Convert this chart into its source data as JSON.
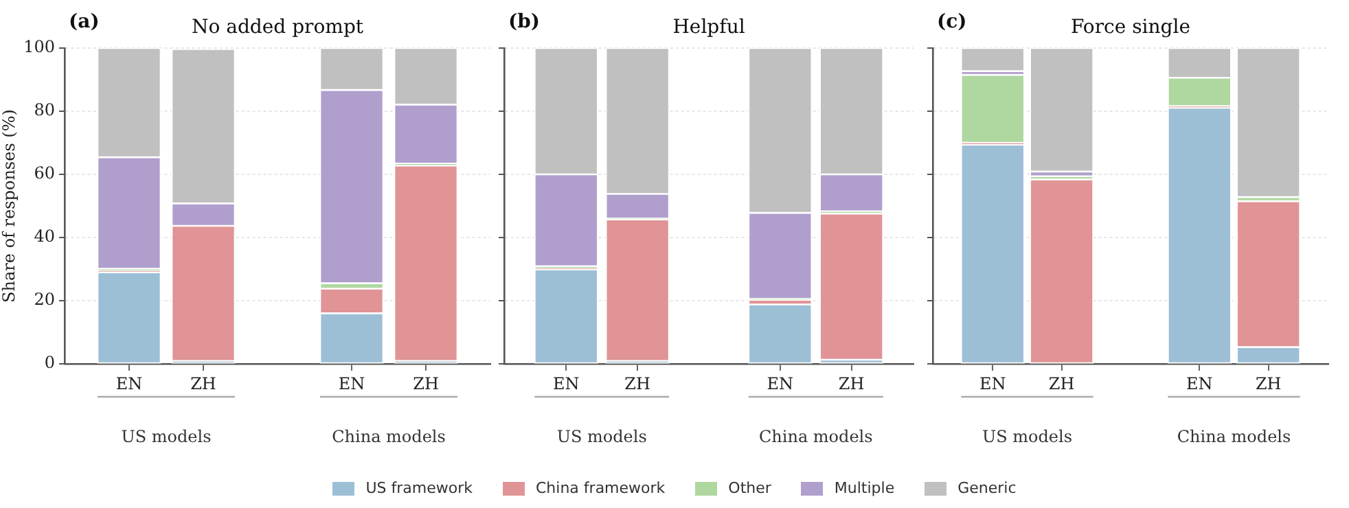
{
  "chart_data": [
    {
      "type": "bar",
      "stacked": true,
      "title": "No added prompt",
      "ylabel": "Share of responses (%)",
      "categories": [
        "EN",
        "ZH",
        null,
        "EN",
        "ZH"
      ],
      "ylim": [
        0,
        100
      ],
      "yticks": [
        0,
        20,
        40,
        60,
        80,
        100
      ],
      "grid": "y",
      "legend": "bottom",
      "annotations": [
        "(a)",
        "US models",
        "China models"
      ],
      "series": [
        {
          "name": "US framework",
          "color": "#9dbfd6",
          "values": [
            29.0,
            0.9,
            null,
            16.0,
            0.9
          ]
        },
        {
          "name": "China framework",
          "color": "#e09496",
          "values": [
            0.3,
            42.8,
            null,
            7.8,
            61.9
          ]
        },
        {
          "name": "Other",
          "color": "#afd7a0",
          "values": [
            0.8,
            null,
            null,
            1.7,
            0.6
          ]
        },
        {
          "name": "Multiple",
          "color": "#b09fcd",
          "values": [
            35.3,
            7.1,
            null,
            61.2,
            18.7
          ]
        },
        {
          "name": "Generic",
          "color": "#c0c0c0",
          "values": [
            34.6,
            48.9,
            null,
            13.3,
            17.9
          ]
        }
      ]
    },
    {
      "type": "bar",
      "stacked": true,
      "title": "Helpful",
      "categories": [
        "EN",
        "ZH",
        null,
        "EN",
        "ZH"
      ],
      "ylim": [
        0,
        100
      ],
      "yticks": [
        0,
        20,
        40,
        60,
        80,
        100
      ],
      "grid": "y",
      "tick_labels": "x",
      "annotations": [
        "(b)",
        "US models",
        "China models"
      ],
      "series": [
        {
          "color": "#9dbfd6",
          "values": [
            29.9,
            0.9,
            null,
            18.8,
            1.3
          ]
        },
        {
          "color": "#e09496",
          "values": [
            0.2,
            44.8,
            null,
            1.5,
            46.3
          ]
        },
        {
          "color": "#afd7a0",
          "values": [
            0.8,
            0.3,
            null,
            0.3,
            0.7
          ]
        },
        {
          "color": "#b09fcd",
          "values": [
            29.1,
            7.8,
            null,
            27.2,
            11.7
          ]
        },
        {
          "color": "#c0c0c0",
          "values": [
            40.0,
            46.2,
            null,
            52.2,
            40.0
          ]
        }
      ]
    },
    {
      "type": "bar",
      "stacked": true,
      "title": "Force single",
      "categories": [
        "EN",
        "ZH",
        null,
        "EN",
        "ZH"
      ],
      "ylim": [
        0,
        100
      ],
      "yticks": [
        0,
        20,
        40,
        60,
        80,
        100
      ],
      "grid": "y",
      "tick_labels": "x",
      "annotations": [
        "(c)",
        "US models",
        "China models"
      ],
      "series": [
        {
          "color": "#9dbfd6",
          "values": [
            69.4,
            0,
            null,
            81.1,
            5.3
          ]
        },
        {
          "color": "#e09496",
          "values": [
            0.6,
            58.4,
            null,
            0.5,
            46.2
          ]
        },
        {
          "color": "#afd7a0",
          "values": [
            21.5,
            1.0,
            null,
            9.0,
            1.3
          ]
        },
        {
          "color": "#b09fcd",
          "values": [
            1.2,
            1.5,
            null,
            0,
            0
          ]
        },
        {
          "color": "#c0c0c0",
          "values": [
            7.3,
            39.1,
            null,
            9.4,
            47.2
          ]
        }
      ]
    }
  ]
}
